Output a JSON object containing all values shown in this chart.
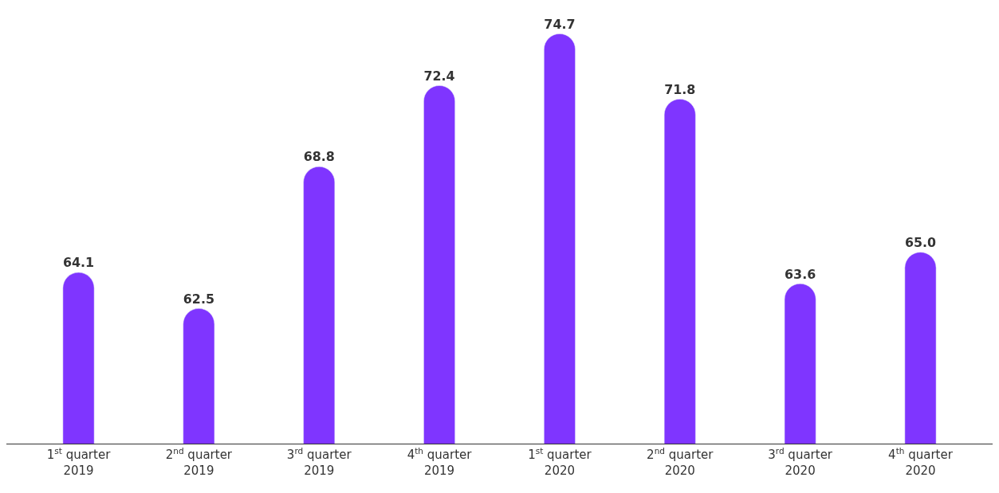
{
  "chart_data": {
    "type": "bar",
    "categories": [
      "1$^{st}$ quarter\n2019",
      "2$^{nd}$ quarter\n2019",
      "3$^{rd}$ quarter\n2019",
      "4$^{th}$ quarter\n2019",
      "1$^{st}$ quarter\n2020",
      "2$^{nd}$ quarter\n2020",
      "3$^{rd}$ quarter\n2020",
      "4$^{th}$ quarter\n2020"
    ],
    "values": [
      64.1,
      62.5,
      68.8,
      72.4,
      74.7,
      71.8,
      63.6,
      65.0
    ],
    "value_labels": [
      "64.1",
      "62.5",
      "68.8",
      "72.4",
      "74.7",
      "71.8",
      "63.6",
      "65.0"
    ],
    "color": "#7f35ff",
    "ylim": [
      56.5,
      76.2
    ],
    "tick_labels": "x"
  }
}
